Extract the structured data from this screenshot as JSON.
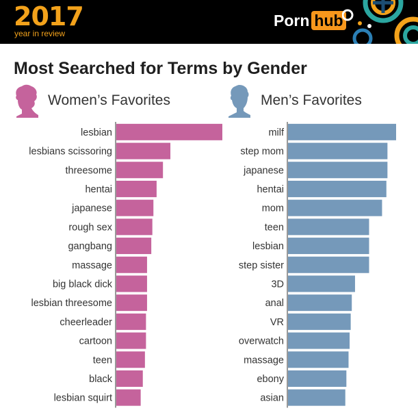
{
  "header": {
    "year": "2017",
    "subtitle": "year in review",
    "brand_part1": "Porn",
    "brand_part2": "hub"
  },
  "title": "Most Searched for Terms by Gender",
  "panels": {
    "women": {
      "label": "Women’s Favorites",
      "icon": "woman-silhouette-icon",
      "color": "#c5639c"
    },
    "men": {
      "label": "Men’s Favorites",
      "icon": "man-silhouette-icon",
      "color": "#7599ba"
    }
  },
  "chart_data": [
    {
      "type": "bar",
      "orientation": "horizontal",
      "title": "Women’s Favorites",
      "color": "#c5639c",
      "xlim": [
        0,
        100
      ],
      "categories": [
        "lesbian",
        "lesbians scissoring",
        "threesome",
        "hentai",
        "japanese",
        "rough sex",
        "gangbang",
        "massage",
        "big black dick",
        "lesbian threesome",
        "cheerleader",
        "cartoon",
        "teen",
        "black",
        "lesbian squirt"
      ],
      "values": [
        100,
        51,
        44,
        38,
        35,
        34,
        33,
        29,
        29,
        29,
        28,
        28,
        27,
        25,
        23
      ]
    },
    {
      "type": "bar",
      "orientation": "horizontal",
      "title": "Men’s Favorites",
      "color": "#7599ba",
      "xlim": [
        0,
        100
      ],
      "categories": [
        "milf",
        "step mom",
        "japanese",
        "hentai",
        "mom",
        "teen",
        "lesbian",
        "step sister",
        "3D",
        "anal",
        "VR",
        "overwatch",
        "massage",
        "ebony",
        "asian"
      ],
      "values": [
        100,
        92,
        92,
        91,
        87,
        75,
        75,
        75,
        62,
        59,
        58,
        57,
        56,
        54,
        53
      ]
    }
  ]
}
